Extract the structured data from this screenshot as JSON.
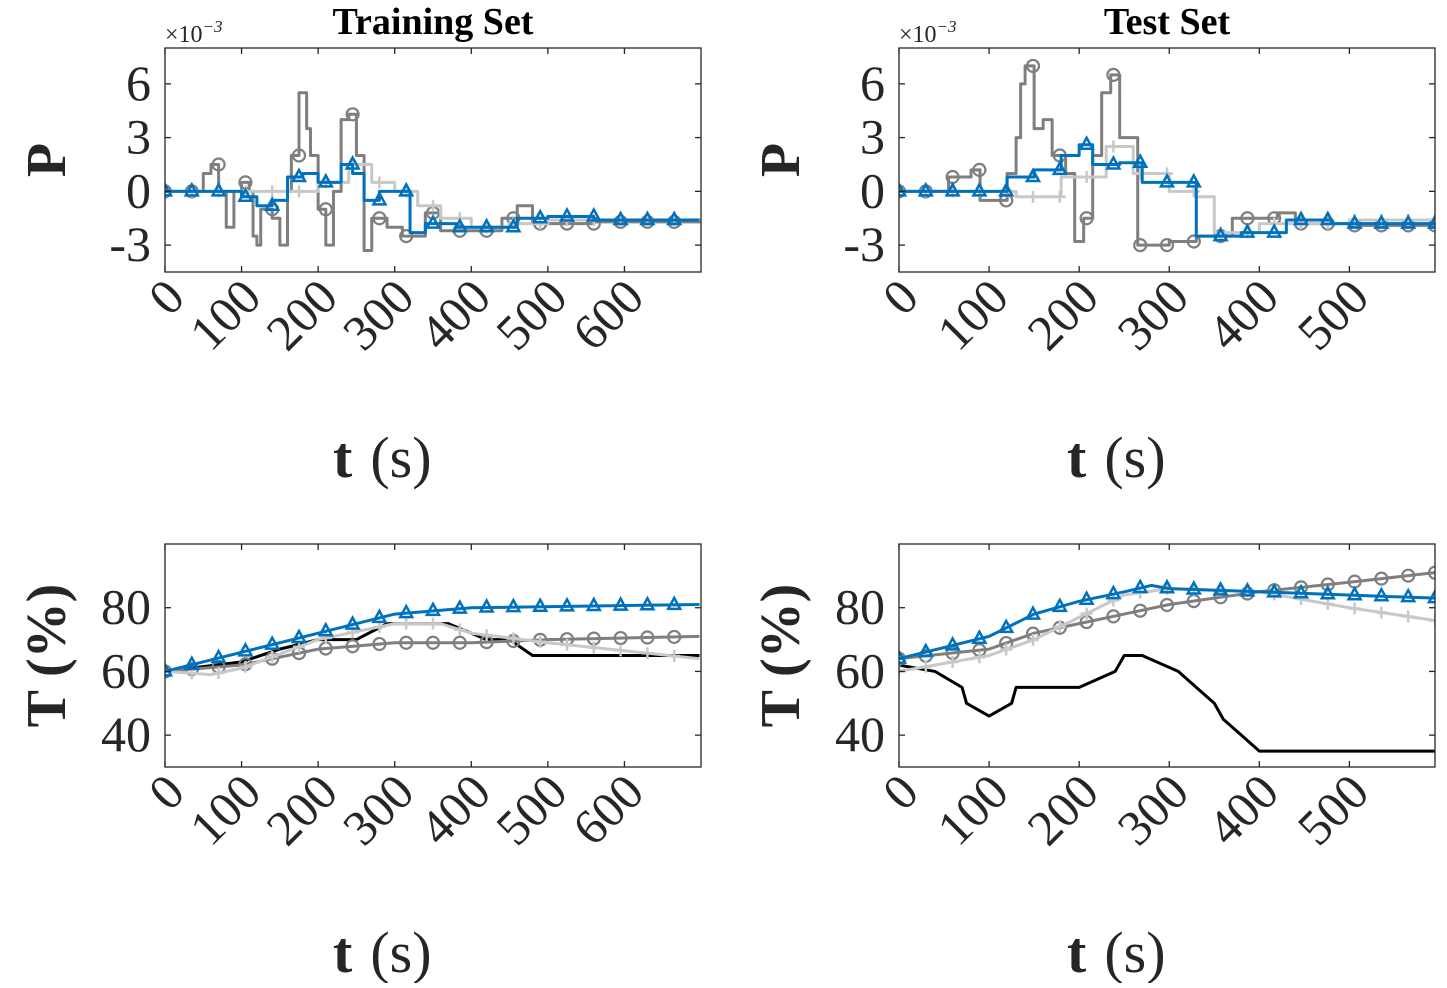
{
  "chart_data": [
    {
      "type": "line",
      "title": "Training Set",
      "ylabel": "P",
      "xlabel_var": "t",
      "xlabel_unit": "(s)",
      "exponent_label": "×10",
      "exponent_power": "−3",
      "xlim": [
        0,
        700
      ],
      "ylim": [
        -4.5,
        8
      ],
      "xticks": [
        0,
        100,
        200,
        300,
        400,
        500,
        600
      ],
      "yticks": [
        -3,
        0,
        3,
        6
      ],
      "ytick_labels": [
        "-3",
        "0",
        "3",
        "6"
      ],
      "series": [
        {
          "name": "dark-gray-circle",
          "color": "#7f7f7f",
          "marker": "circle",
          "step": true,
          "x": [
            0,
            40,
            50,
            60,
            70,
            80,
            90,
            100,
            110,
            115,
            120,
            125,
            140,
            150,
            160,
            165,
            175,
            180,
            185,
            190,
            200,
            210,
            220,
            230,
            240,
            250,
            260,
            270,
            290,
            310,
            320,
            340,
            360,
            400,
            440,
            460,
            480,
            520,
            560,
            698
          ],
          "y": [
            0,
            0,
            1,
            1.5,
            0,
            -2,
            0,
            0.5,
            0,
            -2.5,
            -3,
            -1,
            -1.5,
            -3,
            0,
            2,
            5.5,
            5.5,
            3.5,
            2,
            -1,
            -3,
            0,
            4,
            4.3,
            2,
            -3.3,
            -1.5,
            -2,
            -2.5,
            -2.5,
            -1.2,
            -2.2,
            -2.2,
            -1.5,
            -0.8,
            -1.8,
            -1.8,
            -1.7,
            -1.6
          ]
        },
        {
          "name": "light-gray-plus",
          "color": "#c8c8c8",
          "marker": "plus",
          "step": true,
          "x": [
            0,
            100,
            150,
            200,
            240,
            270,
            300,
            330,
            360,
            400,
            450,
            500,
            698
          ],
          "y": [
            0,
            0,
            0,
            0.5,
            1.5,
            0.5,
            0,
            -0.8,
            -1.5,
            -2,
            -1.8,
            -1.6,
            -1.5
          ]
        },
        {
          "name": "blue-triangle",
          "color": "#0072bd",
          "marker": "triangle",
          "step": true,
          "x": [
            0,
            80,
            100,
            120,
            140,
            160,
            180,
            200,
            230,
            245,
            260,
            280,
            300,
            320,
            340,
            380,
            420,
            460,
            500,
            560,
            698
          ],
          "y": [
            0,
            0,
            -0.3,
            -0.8,
            -0.5,
            0.8,
            1,
            0.5,
            1.5,
            1,
            -0.5,
            0,
            0,
            -2.3,
            -1.8,
            -2,
            -2,
            -1.5,
            -1.4,
            -1.6,
            -1.6
          ]
        }
      ]
    },
    {
      "type": "line",
      "title": "Test Set",
      "ylabel": "P",
      "xlabel_var": "t",
      "xlabel_unit": "(s)",
      "exponent_label": "×10",
      "exponent_power": "−3",
      "xlim": [
        0,
        595
      ],
      "ylim": [
        -4.5,
        8
      ],
      "xticks": [
        0,
        100,
        200,
        300,
        400,
        500
      ],
      "yticks": [
        -3,
        0,
        3,
        6
      ],
      "ytick_labels": [
        "-3",
        "0",
        "3",
        "6"
      ],
      "series": [
        {
          "name": "dark-gray-circle",
          "color": "#7f7f7f",
          "marker": "circle",
          "step": true,
          "x": [
            0,
            50,
            55,
            80,
            90,
            110,
            120,
            130,
            135,
            140,
            150,
            160,
            170,
            185,
            195,
            205,
            215,
            225,
            235,
            245,
            265,
            300,
            330,
            340,
            370,
            400,
            420,
            440,
            500,
            595
          ],
          "y": [
            0,
            0,
            0.8,
            1.2,
            -0.5,
            -0.5,
            1,
            3,
            6,
            7,
            3.5,
            4,
            2,
            1,
            -2.8,
            -1.5,
            2,
            5.5,
            6.5,
            3,
            -3,
            -2.8,
            -2.5,
            -2.5,
            -1.5,
            -1.5,
            -1.2,
            -1.8,
            -1.9,
            -1.6
          ]
        },
        {
          "name": "light-gray-plus",
          "color": "#c8c8c8",
          "marker": "plus",
          "step": true,
          "x": [
            0,
            100,
            130,
            180,
            230,
            260,
            300,
            330,
            350,
            400,
            500,
            595
          ],
          "y": [
            0,
            0,
            -0.3,
            0.8,
            2.5,
            1,
            0,
            -0.3,
            -2.3,
            -1.8,
            -1.6,
            -1.6
          ]
        },
        {
          "name": "blue-triangle",
          "color": "#0072bd",
          "marker": "triangle",
          "step": true,
          "x": [
            0,
            100,
            120,
            150,
            180,
            200,
            215,
            245,
            270,
            310,
            330,
            380,
            430,
            480,
            595
          ],
          "y": [
            0,
            0,
            0.8,
            1.2,
            2,
            2.6,
            1.5,
            1.6,
            0.5,
            0.5,
            -2.5,
            -2.3,
            -1.6,
            -1.8,
            -1.7
          ]
        }
      ]
    },
    {
      "type": "line",
      "title": "",
      "ylabel": "T (%)",
      "xlabel_var": "t",
      "xlabel_unit": "(s)",
      "xlim": [
        0,
        700
      ],
      "ylim": [
        30,
        100
      ],
      "xticks": [
        0,
        100,
        200,
        300,
        400,
        500,
        600
      ],
      "yticks": [
        40,
        60,
        80
      ],
      "ytick_labels": [
        "40",
        "60",
        "80"
      ],
      "series": [
        {
          "name": "black-reference",
          "color": "#000000",
          "marker": "none",
          "step": false,
          "x": [
            0,
            100,
            150,
            200,
            250,
            290,
            350,
            370,
            420,
            450,
            480,
            698
          ],
          "y": [
            60,
            63,
            67,
            70,
            70,
            75,
            75,
            75,
            70,
            70,
            65,
            65
          ]
        },
        {
          "name": "dark-gray-circle",
          "color": "#7f7f7f",
          "marker": "circle",
          "step": false,
          "x": [
            0,
            100,
            200,
            250,
            300,
            400,
            500,
            698
          ],
          "y": [
            60,
            62,
            67,
            68,
            69,
            69,
            70,
            71
          ]
        },
        {
          "name": "light-gray-plus",
          "color": "#c8c8c8",
          "marker": "plus",
          "step": false,
          "x": [
            0,
            60,
            100,
            200,
            300,
            360,
            400,
            500,
            698
          ],
          "y": [
            60,
            59,
            61,
            70,
            75,
            75,
            72,
            69,
            64
          ]
        },
        {
          "name": "blue-triangle",
          "color": "#0072bd",
          "marker": "triangle",
          "step": false,
          "x": [
            0,
            100,
            200,
            300,
            400,
            698
          ],
          "y": [
            60,
            66,
            72,
            78,
            80,
            81
          ]
        }
      ]
    },
    {
      "type": "line",
      "title": "",
      "ylabel": "T (%)",
      "xlabel_var": "t",
      "xlabel_unit": "(s)",
      "xlim": [
        0,
        595
      ],
      "ylim": [
        30,
        100
      ],
      "xticks": [
        0,
        100,
        200,
        300,
        400,
        500
      ],
      "yticks": [
        40,
        60,
        80
      ],
      "ytick_labels": [
        "40",
        "60",
        "80"
      ],
      "series": [
        {
          "name": "black-reference",
          "color": "#000000",
          "marker": "none",
          "step": false,
          "x": [
            0,
            40,
            70,
            75,
            100,
            125,
            130,
            200,
            240,
            250,
            270,
            310,
            330,
            350,
            360,
            380,
            400,
            595
          ],
          "y": [
            62,
            60,
            55,
            50,
            46,
            50,
            55,
            55,
            60,
            65,
            65,
            60,
            55,
            50,
            45,
            40,
            35,
            35
          ]
        },
        {
          "name": "dark-gray-circle",
          "color": "#7f7f7f",
          "marker": "circle",
          "step": false,
          "x": [
            0,
            100,
            150,
            200,
            250,
            300,
            400,
            500,
            595
          ],
          "y": [
            64,
            67,
            72,
            75,
            78,
            81,
            85,
            88,
            91
          ]
        },
        {
          "name": "light-gray-plus",
          "color": "#c8c8c8",
          "marker": "plus",
          "step": false,
          "x": [
            0,
            100,
            150,
            200,
            250,
            300,
            400,
            500,
            595
          ],
          "y": [
            60,
            65,
            70,
            77,
            84,
            86,
            85,
            80,
            76
          ]
        },
        {
          "name": "blue-triangle",
          "color": "#0072bd",
          "marker": "triangle",
          "step": false,
          "x": [
            0,
            100,
            150,
            200,
            250,
            280,
            300,
            400,
            595
          ],
          "y": [
            64,
            71,
            78,
            82,
            85,
            87,
            86,
            85,
            83
          ]
        }
      ]
    }
  ]
}
